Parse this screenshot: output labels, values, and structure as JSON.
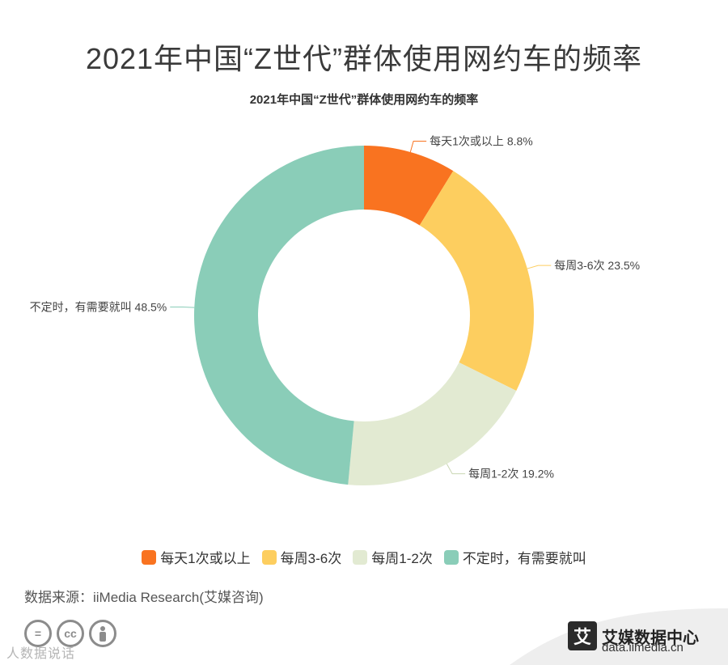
{
  "page": {
    "title": "2021年中国“Z世代”群体使用网约车的频率",
    "source": "数据来源：iiMedia Research(艾媒咨询)",
    "watermark": "人数据说话",
    "brand_logo_char": "艾",
    "brand_name": "艾媒数据中心",
    "brand_url": "data.iimedia.cn"
  },
  "chart_data": {
    "type": "pie",
    "donut": true,
    "title": "2021年中国“Z世代”群体使用网约车的频率",
    "legend_position": "bottom",
    "slices": [
      {
        "name": "每天1次或以上",
        "value": 8.8,
        "label": "每天1次或以上 8.8%",
        "color": "#f97320"
      },
      {
        "name": "每周3-6次",
        "value": 23.5,
        "label": "每周3-6次 23.5%",
        "color": "#fdce5f"
      },
      {
        "name": "每周1-2次",
        "value": 19.2,
        "label": "每周1-2次 19.2%",
        "color": "#e2ead2"
      },
      {
        "name": "不定时，有需要就叫",
        "value": 48.5,
        "label": "不定时，有需要就叫 48.5%",
        "color": "#8acdb8"
      }
    ]
  }
}
